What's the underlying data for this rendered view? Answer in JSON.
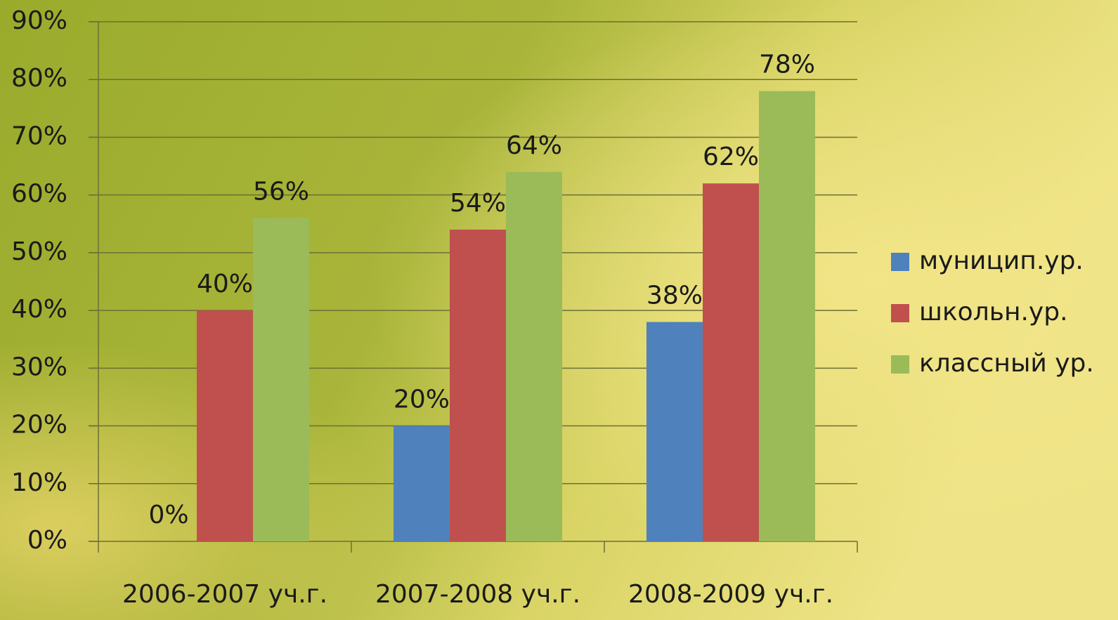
{
  "chart_data": {
    "type": "bar",
    "categories": [
      "2006-2007 уч.г.",
      "2007-2008 уч.г.",
      "2008-2009 уч.г."
    ],
    "series": [
      {
        "name": "муницип.ур.",
        "color": "#4f81bd",
        "values": [
          0,
          20,
          38
        ],
        "value_labels": [
          "0%",
          "20%",
          "38%"
        ]
      },
      {
        "name": "школьн.ур.",
        "color": "#c0504d",
        "values": [
          40,
          54,
          62
        ],
        "value_labels": [
          "40%",
          "54%",
          "62%"
        ]
      },
      {
        "name": "классный ур.",
        "color": "#9bbb59",
        "values": [
          56,
          64,
          78
        ],
        "value_labels": [
          "56%",
          "64%",
          "78%"
        ]
      }
    ],
    "ylim": [
      0,
      90
    ],
    "yticks": [
      {
        "value": 0,
        "label": "0%"
      },
      {
        "value": 10,
        "label": "10%"
      },
      {
        "value": 20,
        "label": "20%"
      },
      {
        "value": 30,
        "label": "30%"
      },
      {
        "value": 40,
        "label": "40%"
      },
      {
        "value": 50,
        "label": "50%"
      },
      {
        "value": 60,
        "label": "60%"
      },
      {
        "value": 70,
        "label": "70%"
      },
      {
        "value": 80,
        "label": "80%"
      },
      {
        "value": 90,
        "label": "90%"
      }
    ],
    "grid": true,
    "legend": "right"
  }
}
